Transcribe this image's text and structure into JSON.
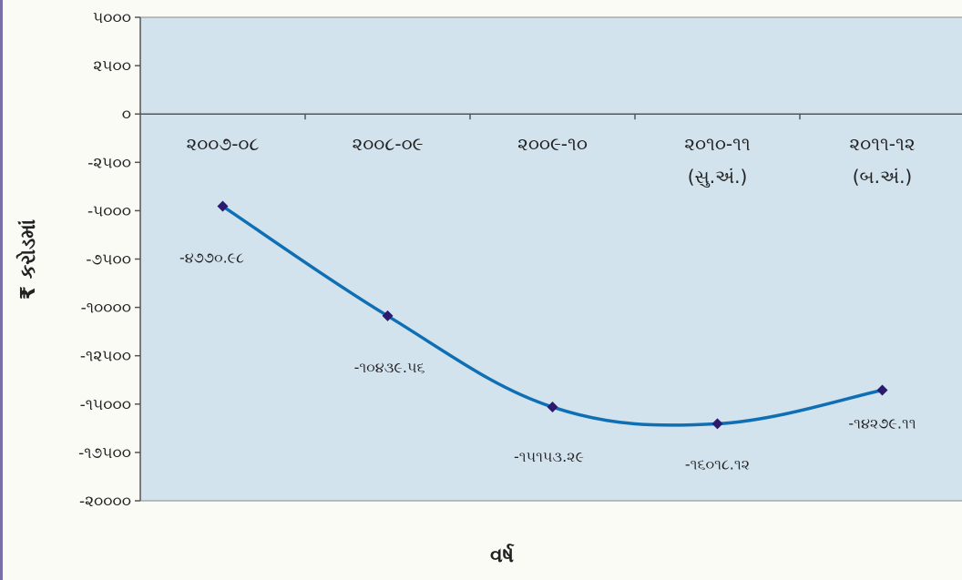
{
  "chart_data": {
    "type": "line",
    "title": "",
    "xlabel": "વર્ષ",
    "ylabel": "₹ કરોડમાં",
    "ylim": [
      -20000,
      5000
    ],
    "yticks": [
      5000,
      2500,
      0,
      -2500,
      -5000,
      -7500,
      -10000,
      -12500,
      -15000,
      -17500,
      -20000
    ],
    "ytick_labels": [
      "૫૦૦૦",
      "૨૫૦૦",
      "૦",
      "-૨૫૦૦",
      "-૫૦૦૦",
      "-૭૫૦૦",
      "-૧૦૦૦૦",
      "-૧૨૫૦૦",
      "-૧૫૦૦૦",
      "-૧૭૫૦૦",
      "-૨૦૦૦૦"
    ],
    "categories": [
      [
        "૨૦૦૭-૦૮"
      ],
      [
        "૨૦૦૮-૦૯"
      ],
      [
        "૨૦૦૯-૧૦"
      ],
      [
        "૨૦૧૦-૧૧",
        "(સુ.અં.)"
      ],
      [
        "૨૦૧૧-૧૨",
        "(બ.અં.)"
      ]
    ],
    "values": [
      -4770.98,
      -10439.56,
      -15153.29,
      -16018.12,
      -14279.11
    ],
    "data_labels": [
      "-૪૭૭૦.૯૮",
      "-૧૦૪૩૯.૫૬",
      "-૧૫૧૫૩.૨૯",
      "-૧૬૦૧૮.૧૨",
      "-૧૪૨૭૯.૧૧"
    ],
    "grid": false,
    "legend": "none",
    "colors": {
      "line": "#0f6fb5",
      "marker": "#2b1a6e",
      "plot_bg": "#d3e3ee",
      "axis": "#555555"
    }
  }
}
